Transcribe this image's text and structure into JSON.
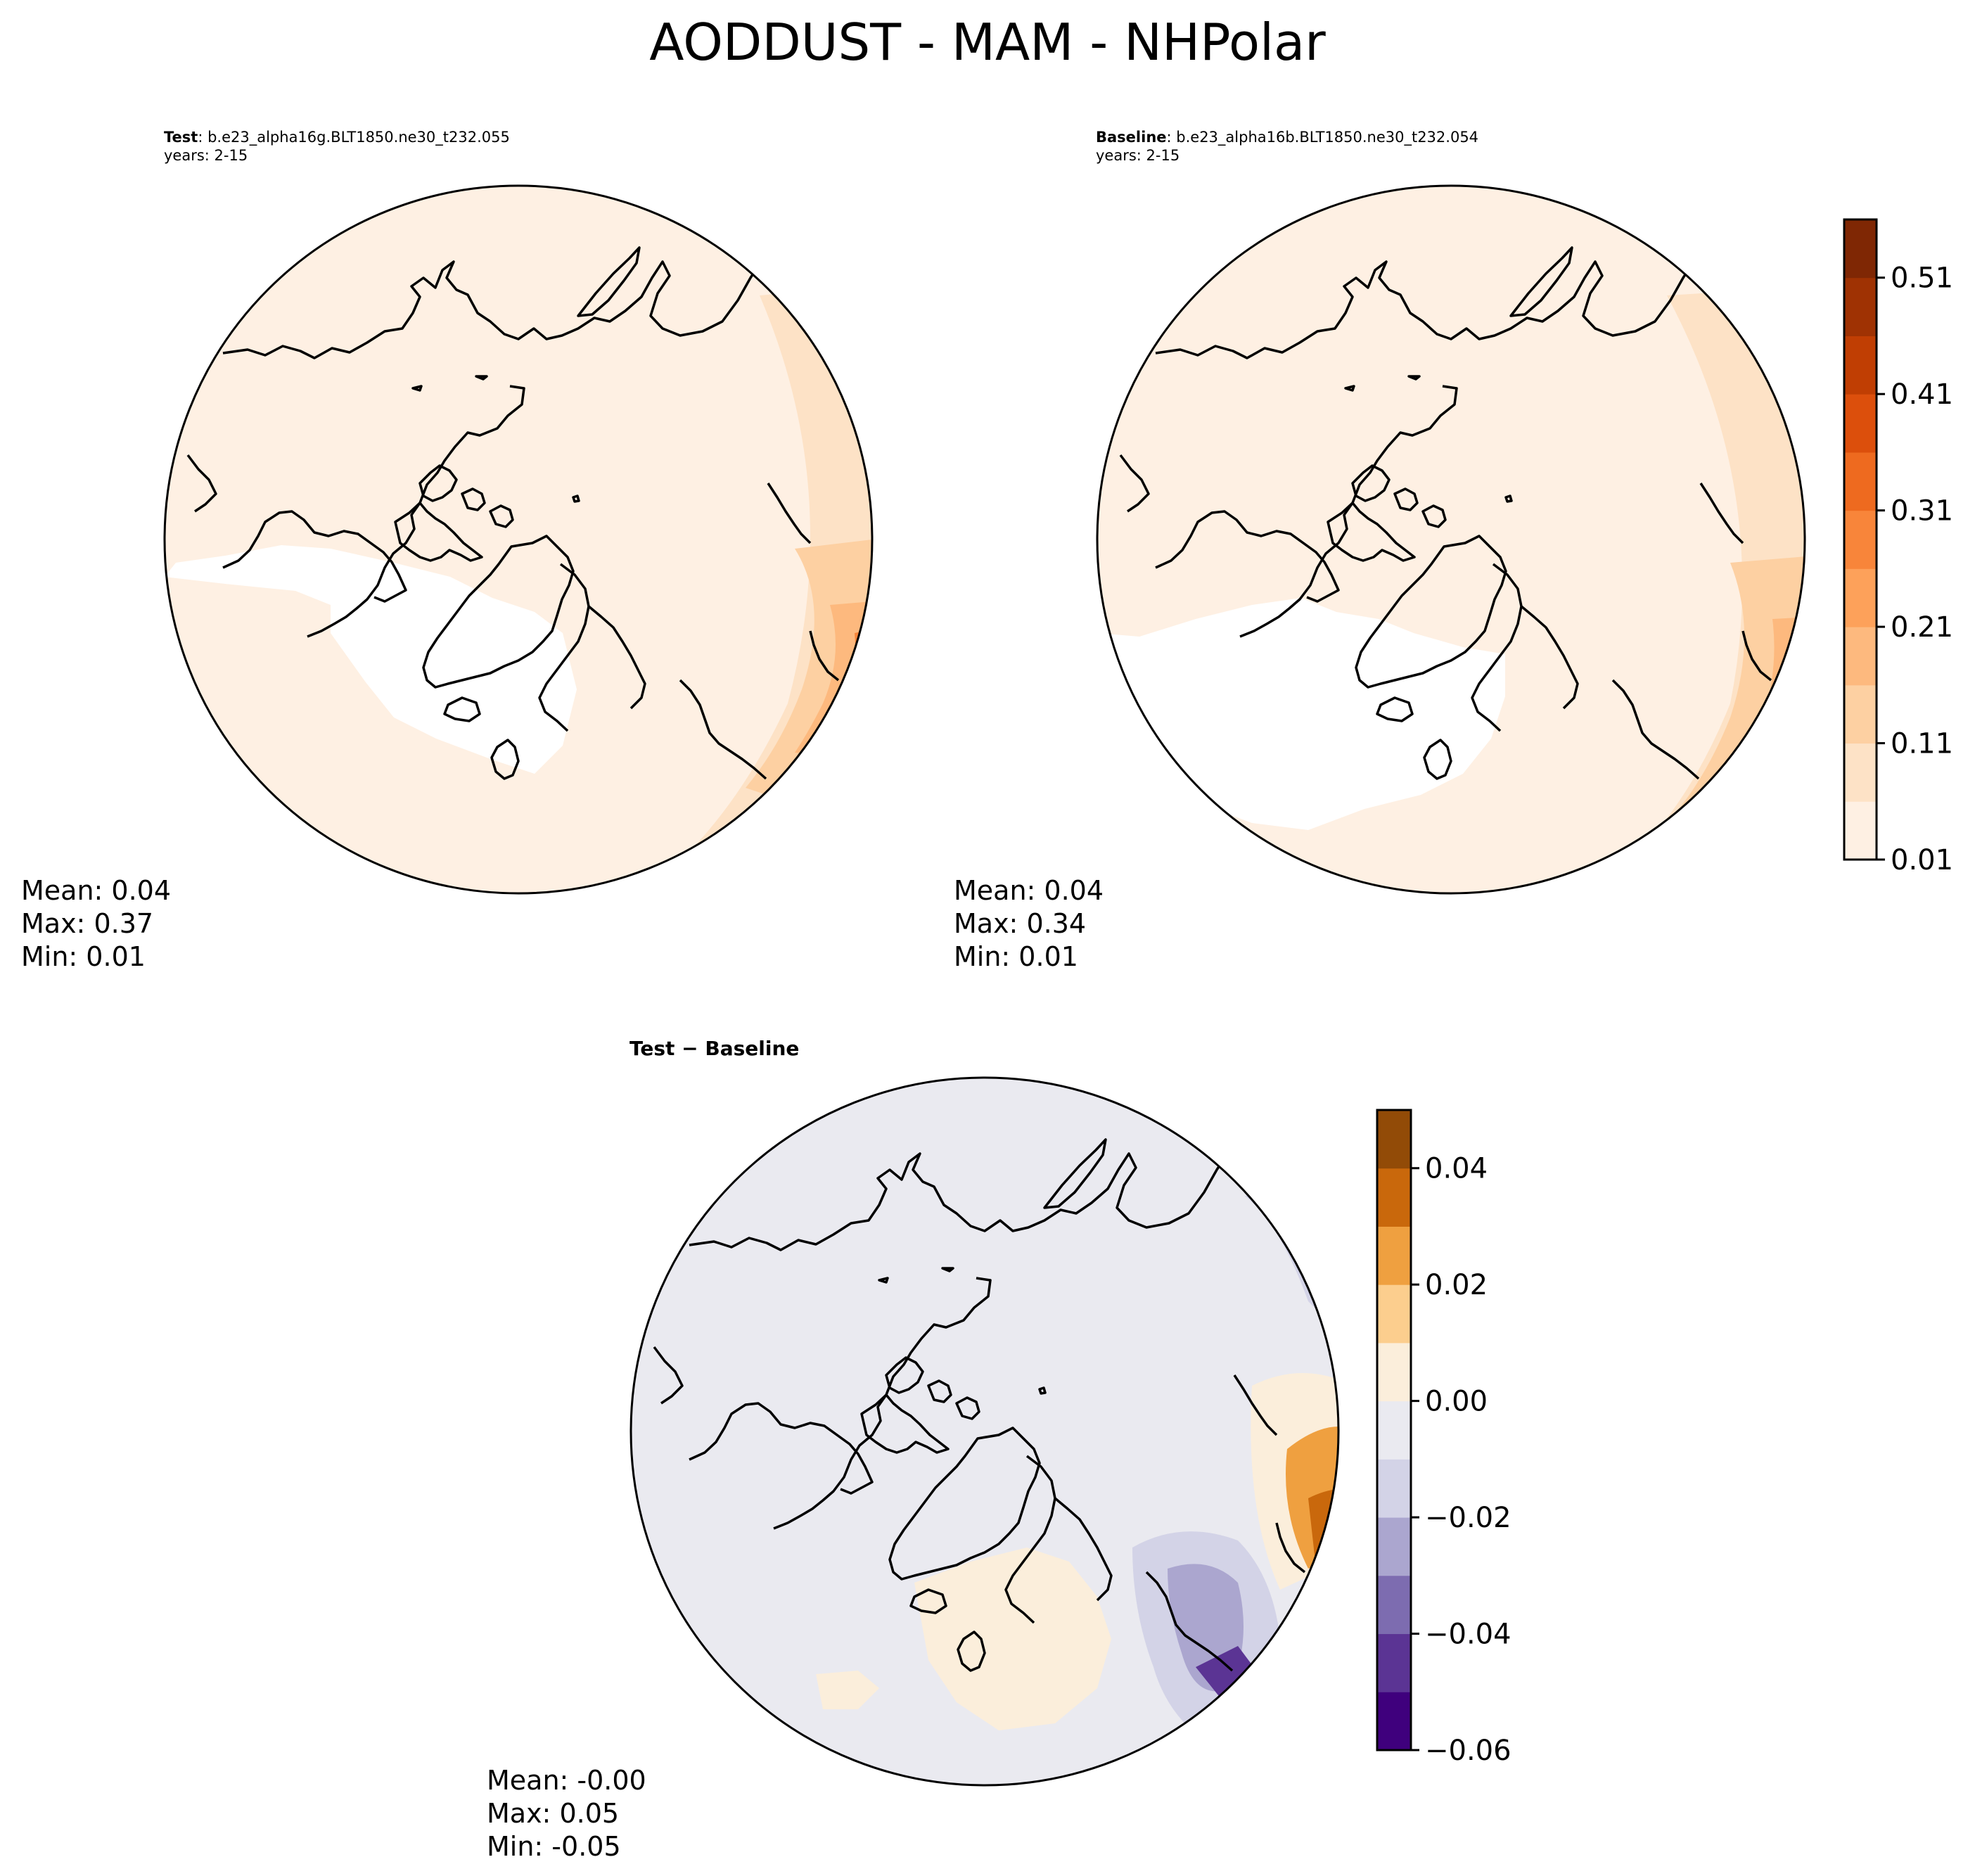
{
  "title": "AODDUST - MAM - NHPolar",
  "panels": [
    {
      "label": "Test",
      "case_name": ": b.e23_alpha16g.BLT1850.ne30_t232.055",
      "years": "years: 2-15",
      "stats": {
        "mean": "Mean:  0.04",
        "max": "Max:  0.37",
        "min": "Min:  0.01"
      }
    },
    {
      "label": "Baseline",
      "case_name": ": b.e23_alpha16b.BLT1850.ne30_t232.054",
      "years": "years: 2-15",
      "stats": {
        "mean": "Mean:  0.04",
        "max": "Max:  0.34",
        "min": "Min:  0.01"
      }
    }
  ],
  "diff_panel": {
    "title": "Test − Baseline",
    "stats": {
      "mean": "Mean: -0.00",
      "max": "Max:  0.05",
      "min": "Min: -0.05"
    }
  },
  "colorbars": {
    "main": {
      "ticks": [
        "0.01",
        "0.11",
        "0.21",
        "0.31",
        "0.41",
        "0.51"
      ],
      "colors": [
        "#fef0e3",
        "#fde2c6",
        "#fdd0a2",
        "#fdb97e",
        "#fda15a",
        "#f8853a",
        "#ee6a1f",
        "#dc4f0c",
        "#c03e03",
        "#9f3203",
        "#7f2704"
      ]
    },
    "diff": {
      "ticks": [
        "−0.06",
        "−0.04",
        "−0.02",
        "0.00",
        "0.02",
        "0.04"
      ],
      "colors": [
        "#3f007d",
        "#5b3494",
        "#7d6cb0",
        "#aba6cf",
        "#d3d3e7",
        "#eaeaf0",
        "#fbeedb",
        "#fcce8e",
        "#efa040",
        "#c9680c",
        "#924b07"
      ]
    }
  },
  "map_colors": {
    "main_base": "#fef0e3",
    "main_ring1": "#fde2c6",
    "main_ring2": "#fdd0a2",
    "main_ring3": "#fdb97e",
    "main_ring4": "#f8853a",
    "diff_base": "#eaeaf0",
    "diff_pos1": "#fbeedb",
    "diff_pos2": "#efa040",
    "diff_pos3": "#c9680c",
    "diff_neg1": "#d3d3e7",
    "diff_neg2": "#aba6cf",
    "diff_neg3": "#5b3494"
  }
}
